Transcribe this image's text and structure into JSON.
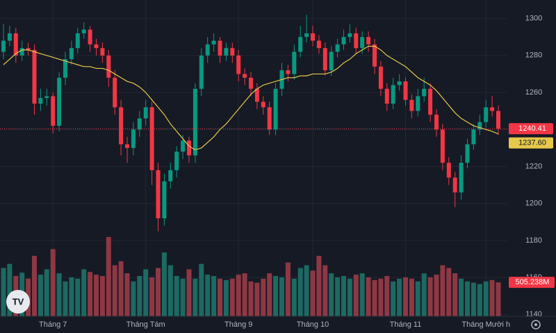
{
  "chart_data": {
    "type": "candlestick",
    "categories": [
      null,
      null,
      null,
      null,
      null,
      null,
      null,
      null,
      "Tháng 7",
      null,
      null,
      null,
      null,
      null,
      null,
      null,
      null,
      null,
      null,
      null,
      null,
      null,
      null,
      "Tháng Tám",
      null,
      null,
      null,
      null,
      null,
      null,
      null,
      null,
      null,
      null,
      null,
      null,
      null,
      null,
      "Tháng 9",
      null,
      null,
      null,
      null,
      null,
      null,
      null,
      null,
      null,
      null,
      null,
      "Tháng 10",
      null,
      null,
      null,
      null,
      null,
      null,
      null,
      null,
      null,
      null,
      null,
      null,
      null,
      null,
      "Tháng 11",
      null,
      null,
      null,
      null,
      null,
      null,
      null,
      null,
      null,
      null,
      null,
      null,
      "Tháng Mười h",
      null,
      null
    ],
    "open": [
      1282,
      1288,
      1292,
      1280,
      1284,
      1283,
      1254,
      1257,
      1258,
      1242,
      1268,
      1278,
      1284,
      1292,
      1294,
      1286,
      1284,
      1280,
      1268,
      1252,
      1232,
      1230,
      1240,
      1246,
      1252,
      1218,
      1192,
      1212,
      1218,
      1228,
      1234,
      1226,
      1262,
      1280,
      1286,
      1288,
      1280,
      1284,
      1280,
      1270,
      1268,
      1262,
      1255,
      1252,
      1240,
      1262,
      1272,
      1270,
      1282,
      1290,
      1292,
      1288,
      1284,
      1272,
      1282,
      1286,
      1290,
      1292,
      1284,
      1290,
      1286,
      1274,
      1262,
      1254,
      1264,
      1266,
      1256,
      1250,
      1258,
      1262,
      1248,
      1240,
      1222,
      1214,
      1206,
      1222,
      1232,
      1240,
      1244,
      1252,
      1250
    ],
    "high": [
      1297,
      1296,
      1295,
      1288,
      1287,
      1286,
      1262,
      1262,
      1260,
      1271,
      1282,
      1288,
      1295,
      1298,
      1296,
      1289,
      1287,
      1283,
      1272,
      1256,
      1236,
      1244,
      1250,
      1256,
      1255,
      1222,
      1216,
      1222,
      1231,
      1237,
      1236,
      1265,
      1284,
      1290,
      1292,
      1290,
      1287,
      1287,
      1283,
      1273,
      1271,
      1265,
      1258,
      1255,
      1265,
      1276,
      1275,
      1286,
      1296,
      1302,
      1296,
      1291,
      1287,
      1285,
      1289,
      1294,
      1297,
      1295,
      1293,
      1293,
      1289,
      1277,
      1265,
      1268,
      1270,
      1268,
      1259,
      1262,
      1268,
      1265,
      1251,
      1243,
      1225,
      1217,
      1226,
      1235,
      1243,
      1248,
      1256,
      1258,
      1253
    ],
    "low": [
      1278,
      1285,
      1276,
      1277,
      1280,
      1248,
      1250,
      1253,
      1238,
      1239,
      1264,
      1275,
      1281,
      1289,
      1282,
      1280,
      1276,
      1263,
      1248,
      1226,
      1222,
      1226,
      1236,
      1242,
      1210,
      1185,
      1188,
      1208,
      1214,
      1224,
      1222,
      1222,
      1258,
      1276,
      1282,
      1276,
      1277,
      1276,
      1266,
      1264,
      1258,
      1251,
      1248,
      1237,
      1237,
      1258,
      1266,
      1267,
      1279,
      1287,
      1285,
      1281,
      1269,
      1269,
      1279,
      1283,
      1287,
      1281,
      1281,
      1282,
      1270,
      1258,
      1250,
      1251,
      1261,
      1253,
      1246,
      1247,
      1255,
      1244,
      1236,
      1218,
      1210,
      1198,
      1202,
      1219,
      1229,
      1237,
      1241,
      1247,
      1237
    ],
    "close": [
      1288,
      1292,
      1280,
      1284,
      1283,
      1254,
      1257,
      1258,
      1242,
      1268,
      1278,
      1284,
      1292,
      1294,
      1286,
      1284,
      1280,
      1268,
      1252,
      1232,
      1230,
      1240,
      1246,
      1252,
      1218,
      1192,
      1212,
      1218,
      1228,
      1234,
      1226,
      1262,
      1280,
      1286,
      1288,
      1280,
      1284,
      1280,
      1270,
      1268,
      1262,
      1255,
      1252,
      1240,
      1262,
      1272,
      1270,
      1282,
      1290,
      1292,
      1288,
      1284,
      1272,
      1282,
      1286,
      1290,
      1292,
      1284,
      1290,
      1286,
      1274,
      1262,
      1254,
      1264,
      1266,
      1256,
      1250,
      1258,
      1262,
      1248,
      1240,
      1222,
      1214,
      1206,
      1222,
      1232,
      1240,
      1244,
      1252,
      1250,
      1240.41
    ],
    "up_color": "#089981",
    "down_color": "#f23645",
    "ma": {
      "color": "#e6c84a",
      "values": [
        1275,
        1278,
        1281,
        1283,
        1283,
        1282,
        1281,
        1280,
        1279,
        1278,
        1277,
        1276,
        1275,
        1274,
        1274,
        1273,
        1273,
        1272,
        1270,
        1268,
        1266,
        1265,
        1263,
        1260,
        1256,
        1252,
        1248,
        1243,
        1239,
        1235,
        1231,
        1229,
        1230,
        1233,
        1236,
        1240,
        1243,
        1247,
        1251,
        1255,
        1259,
        1262,
        1264,
        1265,
        1266,
        1267,
        1268,
        1268,
        1269,
        1269,
        1270,
        1270,
        1270,
        1271,
        1273,
        1276,
        1278,
        1281,
        1283,
        1285,
        1285,
        1283,
        1280,
        1278,
        1276,
        1274,
        1271,
        1268,
        1266,
        1264,
        1261,
        1257,
        1253,
        1249,
        1246,
        1244,
        1242,
        1241,
        1240,
        1239,
        1237.6
      ],
      "value_labels": {
        "80": "1237.60"
      }
    },
    "volume": {
      "up_color": "#1c6a62",
      "down_color": "#8e3844",
      "values": [
        720,
        780,
        600,
        650,
        560,
        900,
        620,
        700,
        1000,
        640,
        520,
        580,
        560,
        700,
        660,
        620,
        600,
        1180,
        760,
        820,
        640,
        520,
        600,
        700,
        580,
        720,
        950,
        760,
        600,
        560,
        700,
        560,
        780,
        620,
        600,
        560,
        540,
        560,
        620,
        640,
        520,
        500,
        560,
        640,
        600,
        580,
        800,
        560,
        720,
        760,
        680,
        900,
        760,
        640,
        580,
        600,
        560,
        620,
        640,
        580,
        540,
        560,
        600,
        520,
        560,
        580,
        560,
        520,
        640,
        580,
        620,
        760,
        720,
        640,
        560,
        520,
        500,
        480,
        520,
        540,
        505.238
      ],
      "value_labels": {
        "80": "505.238M"
      }
    },
    "ylim": [
      1139,
      1310
    ],
    "yticks": [
      1140,
      1160,
      1180,
      1200,
      1220,
      1240,
      1260,
      1280,
      1300
    ],
    "y2lim": [
      0,
      1200
    ],
    "grid": true
  }
}
